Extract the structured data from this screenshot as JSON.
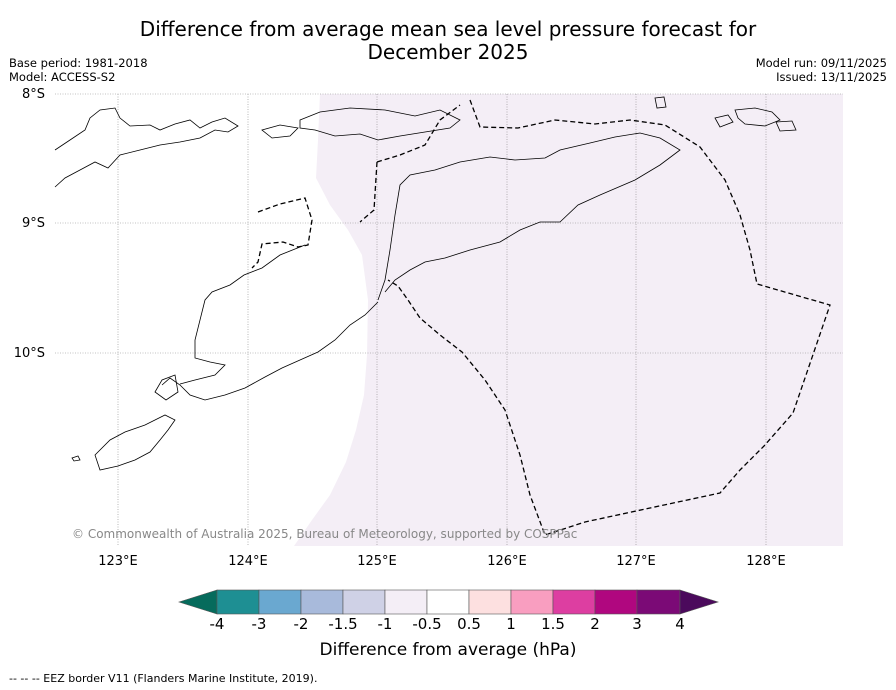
{
  "title": {
    "line1": "Difference from average mean sea level pressure forecast for",
    "line2": "December 2025"
  },
  "meta": {
    "base_period": "Base period: 1981-2018",
    "model": "Model: ACCESS-S2",
    "model_run": "Model run: 09/11/2025",
    "issued": "Issued: 13/11/2025"
  },
  "map": {
    "lat_labels": [
      "8°S",
      "9°S",
      "10°S"
    ],
    "lon_labels": [
      "123°E",
      "124°E",
      "125°E",
      "126°E",
      "127°E",
      "128°E"
    ],
    "copyright": "© Commonwealth of Australia 2025, Bureau of Meteorology, supported by COSPPac",
    "anomaly_color": "#f4eef6"
  },
  "colorbar": {
    "labels": [
      "-4",
      "-3",
      "-2",
      "-1.5",
      "-1",
      "-0.5",
      "0.5",
      "1",
      "1.5",
      "2",
      "3",
      "4"
    ],
    "colors": [
      "#066b5c",
      "#1e8f93",
      "#6aa8d0",
      "#a8badb",
      "#cfd1e6",
      "#f4eef6",
      "#ffffff",
      "#fde0e0",
      "#f99ec0",
      "#dd3ea1",
      "#b0077f",
      "#7b0a76",
      "#4b0a5c"
    ],
    "title": "Difference from average (hPa)"
  },
  "footnote": "--  --  -- EEZ border V11 (Flanders Marine Institute, 2019)."
}
